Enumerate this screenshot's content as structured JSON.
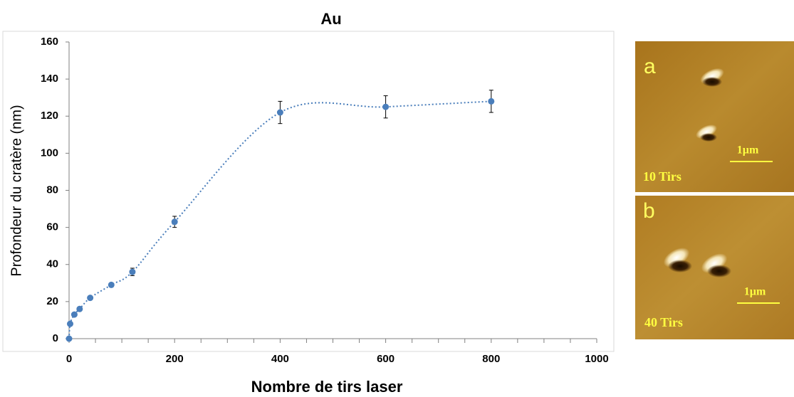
{
  "chart_data": {
    "type": "scatter",
    "title": "Au",
    "x_label": "Nombre de tirs laser",
    "y_label": "Profondeur du cratère (nm)",
    "x": [
      0,
      2,
      10,
      20,
      40,
      80,
      120,
      200,
      400,
      600,
      800
    ],
    "series": [
      {
        "color": "#4a7ebb",
        "values": [
          0,
          8,
          13,
          16,
          22,
          29,
          36,
          63,
          122,
          125,
          128
        ],
        "errors": [
          null,
          null,
          null,
          null,
          null,
          null,
          2,
          3,
          6,
          6,
          6
        ]
      }
    ],
    "trendline": {
      "color": "#4a7ebb",
      "style": "dotted"
    },
    "xlim": [
      0,
      1000
    ],
    "ylim": [
      0,
      160
    ],
    "xticks": [
      0,
      200,
      400,
      600,
      800,
      1000
    ],
    "yticks": [
      0,
      20,
      40,
      60,
      80,
      100,
      120,
      140,
      160
    ],
    "grid": false
  },
  "panels": [
    {
      "letter": "a",
      "scale": "1µm",
      "label": "10 Tirs"
    },
    {
      "letter": "b",
      "scale": "1µm",
      "label": "40 Tirs"
    }
  ]
}
